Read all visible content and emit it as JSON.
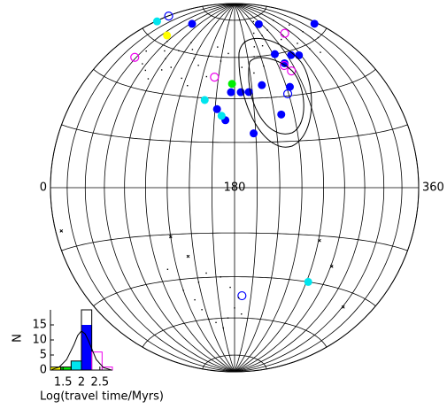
{
  "chart_data": [
    {
      "type": "sky-scatter",
      "projection": "hammer",
      "xlim": [
        0,
        360
      ],
      "ylim": [
        -90,
        90
      ],
      "xticks": [
        0,
        180,
        360
      ],
      "grid": true,
      "series": [
        {
          "marker": "filled",
          "color": "#0000ff",
          "x": [
            64,
            253,
            355,
            243,
            266,
            277,
            250,
            212,
            244,
            176,
            187,
            196,
            162,
            171,
            227,
            198
          ],
          "y": [
            73,
            76,
            64,
            60,
            58,
            57,
            55,
            46,
            44,
            43,
            43,
            43,
            35,
            30,
            32,
            24
          ]
        },
        {
          "marker": "filled",
          "color": "#00e5ee",
          "x": [
            2,
            148,
            167,
            262
          ],
          "y": [
            65,
            39,
            32,
            -40
          ]
        },
        {
          "marker": "filled",
          "color": "#ffff00",
          "x": [
            49
          ],
          "y": [
            64
          ]
        },
        {
          "marker": "filled",
          "color": "#00ee00",
          "x": [
            177
          ],
          "y": [
            47
          ]
        },
        {
          "marker": "open",
          "color": "#0000ff",
          "x": [
            1,
            239,
            189
          ],
          "y": [
            69,
            41,
            -49
          ]
        },
        {
          "marker": "open",
          "color": "#ee00ee",
          "x": [
            38,
            155,
            287,
            248,
            254
          ],
          "y": [
            51,
            50,
            68,
            54,
            51
          ]
        },
        {
          "marker": "cross",
          "color": "#000000",
          "x": [
            7,
            120,
            261,
            281,
            321,
            134
          ],
          "y": [
            -14,
            -21,
            -22,
            -32,
            -46,
            -30
          ]
        },
        {
          "marker": "dot",
          "color": "#000000",
          "x": [
            60,
            70,
            80,
            90,
            100,
            110,
            120,
            130,
            140,
            150,
            160,
            170,
            200,
            210,
            220,
            230,
            240,
            260,
            270,
            290,
            300,
            310,
            320,
            330,
            45,
            55,
            65,
            75,
            85,
            95,
            115,
            125,
            145,
            190,
            205,
            215,
            225,
            245,
            300,
            315,
            120,
            130,
            135,
            140,
            150,
            160,
            170,
            180,
            185,
            190,
            175,
            165,
            150,
            140,
            110
          ],
          "y": [
            62,
            58,
            55,
            60,
            65,
            62,
            58,
            55,
            60,
            65,
            58,
            62,
            68,
            60,
            55,
            65,
            70,
            72,
            66,
            62,
            58,
            55,
            65,
            60,
            55,
            50,
            48,
            45,
            50,
            52,
            48,
            45,
            50,
            55,
            52,
            65,
            72,
            78,
            75,
            70,
            -45,
            -50,
            -55,
            -60,
            -62,
            -65,
            -60,
            -55,
            -50,
            -58,
            -45,
            -40,
            -38,
            -42,
            -35
          ]
        }
      ]
    },
    {
      "type": "histogram",
      "xlabel": "Log(travel time/Myrs)",
      "ylabel": "N",
      "bins": [
        1.16,
        1.44,
        1.72,
        2.0,
        2.28,
        2.56,
        2.84
      ],
      "xlim": [
        1.16,
        2.84
      ],
      "ylim": [
        0,
        20
      ],
      "xticks": [
        1.5,
        2,
        2.5
      ],
      "yticks": [
        0,
        5,
        10,
        15
      ],
      "series": [
        {
          "style": "filled",
          "colors": [
            "#ffff00",
            "#00ee00",
            "#00e5ee",
            "#0000ff",
            "#ee00ee",
            "#ee00ee"
          ],
          "values": [
            1,
            1,
            3,
            15,
            0,
            0
          ]
        },
        {
          "style": "outline",
          "colors": [
            "#000000",
            "#000000",
            "#000000",
            "#000000",
            "#ee00ee",
            "#ee00ee"
          ],
          "values": [
            1,
            1,
            3,
            20,
            6,
            1
          ]
        }
      ],
      "curve": {
        "x": [
          1.2,
          1.4,
          1.6,
          1.8,
          1.9,
          2.0,
          2.1,
          2.2,
          2.4,
          2.6,
          2.8
        ],
        "y": [
          0.2,
          1,
          3.5,
          8.5,
          11.5,
          13,
          12,
          9.5,
          3.5,
          0.8,
          0.1
        ]
      }
    }
  ]
}
